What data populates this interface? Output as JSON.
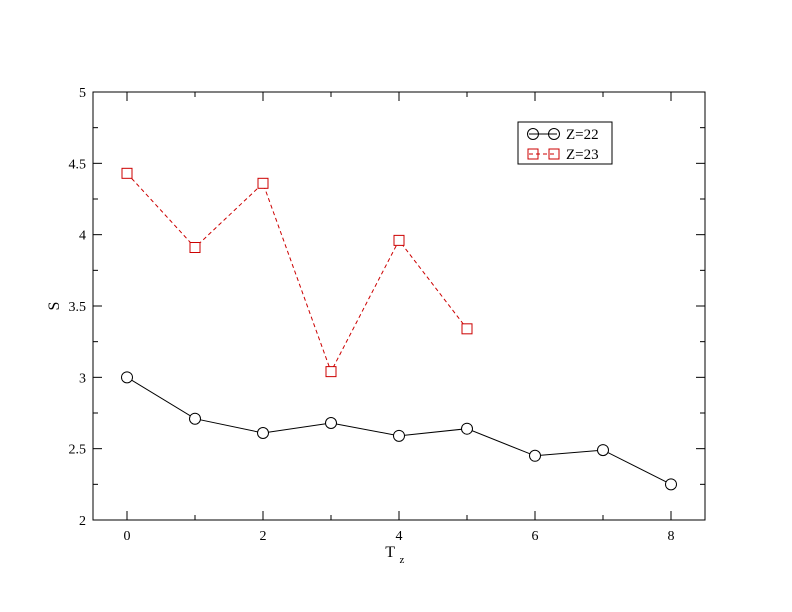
{
  "chart_data": {
    "type": "line",
    "xlabel": "T",
    "xlabel_sub": "z",
    "ylabel": "S",
    "xlim": [
      -0.5,
      8.5
    ],
    "ylim": [
      2,
      5
    ],
    "xticks": [
      0,
      2,
      4,
      6,
      8
    ],
    "xminor": [
      1,
      3,
      5,
      7
    ],
    "yticks": [
      2,
      2.5,
      3,
      3.5,
      4,
      4.5,
      5
    ],
    "ytick_labels": [
      "2",
      "2.5",
      "3",
      "3.5",
      "4",
      "4.5",
      "5"
    ],
    "grid": false,
    "legend_position": "top-right",
    "series": [
      {
        "name": "Z=22",
        "color": "#000000",
        "marker": "circle",
        "line_style": "solid",
        "x": [
          0,
          1,
          2,
          3,
          4,
          5,
          6,
          7,
          8
        ],
        "y": [
          3.0,
          2.71,
          2.61,
          2.68,
          2.59,
          2.64,
          2.45,
          2.49,
          2.25
        ]
      },
      {
        "name": "Z=23",
        "color": "#cc0000",
        "marker": "square",
        "line_style": "dashed",
        "x": [
          0,
          1,
          2,
          3,
          4,
          5
        ],
        "y": [
          4.43,
          3.91,
          4.36,
          3.04,
          3.96,
          3.34
        ]
      }
    ]
  }
}
